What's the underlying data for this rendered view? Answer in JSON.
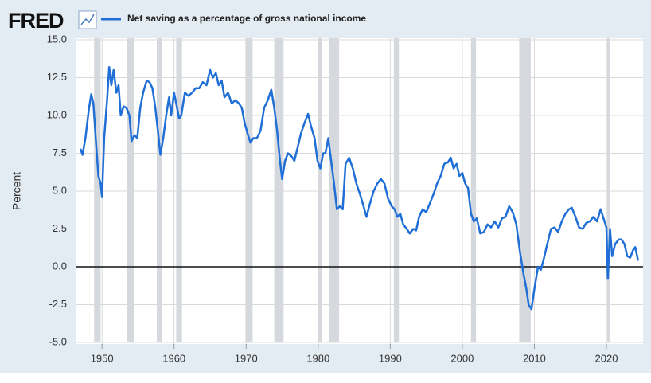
{
  "chart_data": {
    "type": "line",
    "logo": "FRED",
    "ylabel": "Percent",
    "grid": true,
    "xlim": [
      1947,
      2024.75
    ],
    "ylim": [
      -5,
      15
    ],
    "xticks": [
      1950,
      1960,
      1970,
      1980,
      1990,
      2000,
      2010,
      2020
    ],
    "yticks": [
      {
        "value": 15,
        "label": "15.0"
      },
      {
        "value": 12.5,
        "label": "12.5"
      },
      {
        "value": 10,
        "label": "10.0"
      },
      {
        "value": 7.5,
        "label": "7.5"
      },
      {
        "value": 5,
        "label": "5.0"
      },
      {
        "value": 2.5,
        "label": "2.5"
      },
      {
        "value": 0,
        "label": "0.0"
      },
      {
        "value": -2.5,
        "label": "-2.5"
      },
      {
        "value": -5,
        "label": "-5.0"
      }
    ],
    "recessions": [
      [
        1948.9,
        1949.8
      ],
      [
        1953.5,
        1954.4
      ],
      [
        1957.6,
        1958.3
      ],
      [
        1960.3,
        1961.1
      ],
      [
        1969.9,
        1970.9
      ],
      [
        1973.9,
        1975.2
      ],
      [
        1980.0,
        1980.5
      ],
      [
        1981.5,
        1982.9
      ],
      [
        1990.5,
        1991.2
      ],
      [
        2001.2,
        2001.9
      ],
      [
        2007.9,
        2009.5
      ],
      [
        2020.1,
        2020.3
      ]
    ],
    "recession_color": "#d5d9de",
    "x": [
      1947.0,
      1947.3,
      1947.7,
      1948.2,
      1948.5,
      1948.8,
      1949.2,
      1949.5,
      1949.8,
      1950.0,
      1950.3,
      1950.7,
      1951.0,
      1951.3,
      1951.6,
      1952.0,
      1952.3,
      1952.6,
      1953.0,
      1953.4,
      1953.8,
      1954.1,
      1954.5,
      1954.9,
      1955.3,
      1955.7,
      1956.2,
      1956.6,
      1957.0,
      1957.4,
      1957.8,
      1958.1,
      1958.5,
      1958.9,
      1959.3,
      1959.6,
      1960.0,
      1960.3,
      1960.7,
      1961.0,
      1961.5,
      1962.0,
      1962.5,
      1963.0,
      1963.5,
      1964.0,
      1964.5,
      1965.0,
      1965.4,
      1965.8,
      1966.2,
      1966.6,
      1967.0,
      1967.5,
      1968.0,
      1968.5,
      1969.0,
      1969.4,
      1969.8,
      1970.2,
      1970.6,
      1971.0,
      1971.5,
      1972.0,
      1972.5,
      1973.0,
      1973.5,
      1973.9,
      1974.3,
      1974.7,
      1975.0,
      1975.4,
      1975.8,
      1976.3,
      1976.7,
      1977.2,
      1977.6,
      1978.1,
      1978.6,
      1979.0,
      1979.5,
      1979.9,
      1980.3,
      1980.7,
      1981.0,
      1981.4,
      1981.8,
      1982.2,
      1982.6,
      1983.0,
      1983.4,
      1983.8,
      1984.3,
      1984.8,
      1985.3,
      1985.8,
      1986.3,
      1986.7,
      1987.2,
      1987.7,
      1988.2,
      1988.7,
      1989.2,
      1989.7,
      1990.2,
      1990.6,
      1991.0,
      1991.4,
      1991.8,
      1992.3,
      1992.7,
      1993.2,
      1993.6,
      1994.0,
      1994.5,
      1995.0,
      1995.5,
      1996.0,
      1996.5,
      1997.0,
      1997.5,
      1998.0,
      1998.4,
      1998.8,
      1999.2,
      1999.6,
      2000.0,
      2000.4,
      2000.8,
      2001.2,
      2001.6,
      2002.0,
      2002.5,
      2003.0,
      2003.5,
      2004.0,
      2004.5,
      2005.0,
      2005.5,
      2006.0,
      2006.5,
      2007.0,
      2007.5,
      2008.0,
      2008.5,
      2008.9,
      2009.2,
      2009.6,
      2010.0,
      2010.5,
      2010.9,
      2011.3,
      2011.8,
      2012.3,
      2012.8,
      2013.3,
      2013.8,
      2014.3,
      2014.8,
      2015.2,
      2015.7,
      2016.2,
      2016.7,
      2017.2,
      2017.7,
      2018.2,
      2018.7,
      2019.2,
      2019.6,
      2020.0,
      2020.2,
      2020.5,
      2020.8,
      2021.2,
      2021.7,
      2022.1,
      2022.5,
      2022.9,
      2023.3,
      2023.7,
      2024.0,
      2024.4
    ],
    "series": [
      {
        "name": "Net saving as a percentage of gross national income",
        "color": "#1f6fd6",
        "values": [
          7.8,
          7.4,
          8.5,
          10.5,
          11.4,
          10.8,
          8.0,
          6.0,
          5.5,
          4.6,
          8.5,
          11.0,
          13.2,
          12.0,
          13.0,
          11.5,
          12.0,
          10.0,
          10.6,
          10.5,
          10.0,
          8.3,
          8.7,
          8.5,
          10.5,
          11.5,
          12.3,
          12.2,
          11.8,
          10.5,
          8.8,
          7.4,
          8.5,
          10.0,
          11.2,
          10.0,
          11.5,
          10.8,
          9.8,
          10.0,
          11.5,
          11.3,
          11.5,
          11.8,
          11.8,
          12.2,
          12.0,
          13.0,
          12.5,
          12.8,
          12.0,
          12.3,
          11.2,
          11.5,
          10.8,
          11.0,
          10.8,
          10.5,
          9.5,
          8.8,
          8.2,
          8.5,
          8.5,
          9.0,
          10.5,
          11.0,
          11.7,
          10.5,
          9.0,
          7.0,
          5.8,
          7.0,
          7.5,
          7.3,
          7.0,
          8.0,
          8.8,
          9.5,
          10.1,
          9.3,
          8.5,
          7.0,
          6.5,
          7.5,
          7.5,
          8.5,
          7.0,
          5.5,
          3.8,
          4.0,
          3.8,
          6.8,
          7.2,
          6.5,
          5.5,
          4.8,
          4.0,
          3.3,
          4.2,
          5.0,
          5.5,
          5.8,
          5.5,
          4.5,
          4.0,
          3.8,
          3.3,
          3.5,
          2.8,
          2.5,
          2.2,
          2.5,
          2.4,
          3.3,
          3.8,
          3.6,
          4.2,
          4.8,
          5.5,
          6.0,
          6.8,
          6.9,
          7.2,
          6.5,
          6.8,
          6.0,
          6.2,
          5.5,
          5.2,
          3.5,
          3.0,
          3.2,
          2.2,
          2.3,
          2.8,
          2.6,
          3.0,
          2.6,
          3.2,
          3.3,
          4.0,
          3.6,
          2.8,
          1.0,
          -0.5,
          -1.5,
          -2.5,
          -2.8,
          -1.5,
          0.0,
          -0.2,
          0.5,
          1.5,
          2.5,
          2.6,
          2.3,
          3.0,
          3.5,
          3.8,
          3.9,
          3.3,
          2.6,
          2.5,
          2.9,
          3.0,
          3.3,
          3.0,
          3.8,
          3.2,
          2.6,
          -0.8,
          2.5,
          0.7,
          1.5,
          1.8,
          1.8,
          1.5,
          0.7,
          0.6,
          1.1,
          1.3,
          0.4
        ]
      }
    ]
  }
}
